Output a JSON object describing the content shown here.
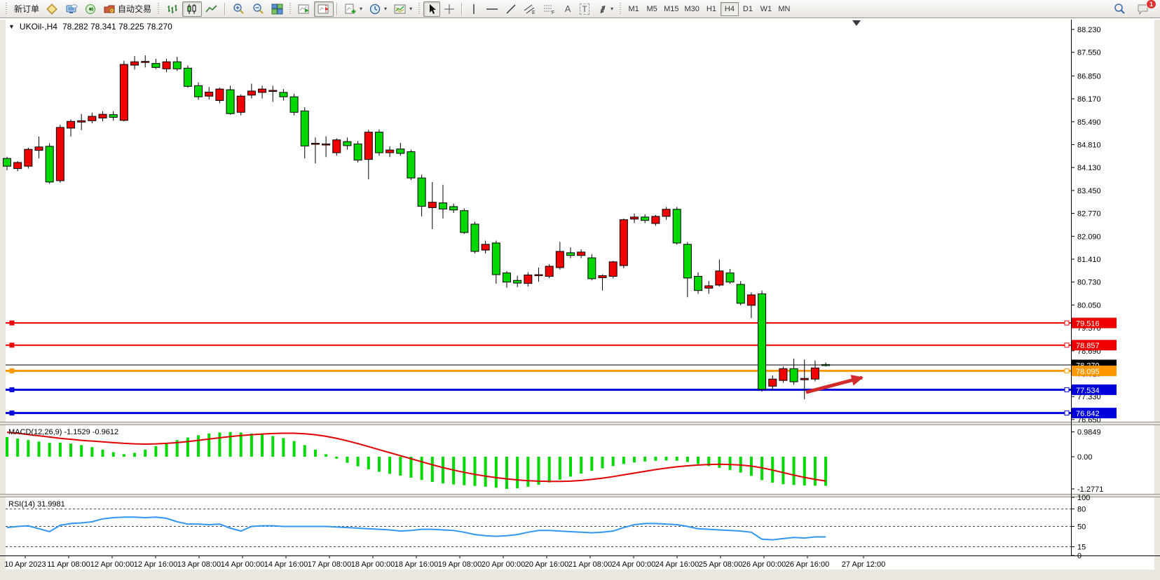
{
  "toolbar": {
    "new_order_label": "新订单",
    "autotrading_label": "自动交易",
    "icon_glyphs": {
      "text_tool": "A",
      "label_tool": "T",
      "channel_tool": "E",
      "fibo_tool": "F"
    },
    "timeframes": [
      "M1",
      "M5",
      "M15",
      "M30",
      "H1",
      "H4",
      "D1",
      "W1",
      "MN"
    ],
    "active_timeframe": "H4",
    "chat_badge": "1"
  },
  "chart": {
    "collapse_glyph": "▼",
    "symbol_period": "UKOil-,H4",
    "ohlc_text": "78.282 78.341 78.225 78.270",
    "up_color": "#f00000",
    "down_color": "#00d800"
  },
  "chart_data": [
    {
      "type": "candlestick",
      "title": "UKOil- H4",
      "x_labels": [
        "10 Apr 2023",
        "11 Apr 08:00",
        "12 Apr 00:00",
        "12 Apr 16:00",
        "13 Apr 08:00",
        "14 Apr 00:00",
        "14 Apr 16:00",
        "17 Apr 08:00",
        "18 Apr 00:00",
        "18 Apr 16:00",
        "19 Apr 08:00",
        "20 Apr 00:00",
        "20 Apr 16:00",
        "21 Apr 08:00",
        "24 Apr 00:00",
        "24 Apr 16:00",
        "25 Apr 08:00",
        "26 Apr 00:00",
        "26 Apr 16:00",
        "27 Apr 12:00"
      ],
      "y_ticks": [
        "88.230",
        "87.550",
        "86.850",
        "86.170",
        "85.490",
        "84.810",
        "84.130",
        "83.450",
        "82.770",
        "82.090",
        "81.410",
        "80.730",
        "80.050",
        "79.370",
        "78.690",
        "78.010",
        "77.330",
        "76.650"
      ],
      "ylim": [
        76.3,
        88.5
      ],
      "up_color": "#f00000",
      "down_color": "#00d800",
      "candles": [
        [
          84.4,
          84.45,
          84.05,
          84.17
        ],
        [
          84.1,
          84.32,
          84.02,
          84.28
        ],
        [
          84.17,
          84.72,
          84.1,
          84.67
        ],
        [
          84.64,
          85.05,
          84.4,
          84.74
        ],
        [
          84.76,
          84.85,
          83.65,
          83.7
        ],
        [
          83.74,
          85.4,
          83.68,
          85.32
        ],
        [
          85.3,
          85.56,
          85.05,
          85.5
        ],
        [
          85.48,
          85.72,
          85.24,
          85.52
        ],
        [
          85.52,
          85.76,
          85.44,
          85.65
        ],
        [
          85.6,
          85.8,
          85.5,
          85.71
        ],
        [
          85.7,
          85.8,
          85.52,
          85.62
        ],
        [
          85.53,
          87.3,
          85.5,
          87.19
        ],
        [
          87.17,
          87.44,
          87.04,
          87.27
        ],
        [
          87.25,
          87.46,
          87.1,
          87.28
        ],
        [
          87.22,
          87.36,
          87.05,
          87.1
        ],
        [
          87.06,
          87.36,
          86.96,
          87.27
        ],
        [
          87.27,
          87.42,
          87.0,
          87.06
        ],
        [
          87.08,
          87.16,
          86.5,
          86.54
        ],
        [
          86.56,
          86.66,
          86.14,
          86.23
        ],
        [
          86.25,
          86.52,
          86.15,
          86.37
        ],
        [
          86.12,
          86.5,
          86.04,
          86.46
        ],
        [
          86.44,
          86.56,
          85.7,
          85.73
        ],
        [
          85.77,
          86.3,
          85.68,
          86.25
        ],
        [
          86.28,
          86.62,
          86.18,
          86.4
        ],
        [
          86.36,
          86.56,
          86.18,
          86.46
        ],
        [
          86.4,
          86.56,
          86.08,
          86.42
        ],
        [
          86.36,
          86.46,
          86.12,
          86.23
        ],
        [
          86.23,
          86.32,
          85.68,
          85.77
        ],
        [
          85.81,
          85.92,
          84.4,
          84.77
        ],
        [
          84.83,
          85.02,
          84.25,
          84.85
        ],
        [
          84.8,
          85.06,
          84.44,
          84.83
        ],
        [
          84.57,
          85.0,
          84.48,
          84.95
        ],
        [
          84.9,
          85.02,
          84.66,
          84.78
        ],
        [
          84.83,
          84.92,
          84.28,
          84.35
        ],
        [
          84.37,
          85.25,
          83.78,
          85.18
        ],
        [
          85.18,
          85.26,
          84.48,
          84.57
        ],
        [
          84.57,
          84.76,
          84.44,
          84.65
        ],
        [
          84.68,
          84.86,
          84.48,
          84.55
        ],
        [
          84.6,
          84.66,
          83.76,
          83.82
        ],
        [
          83.82,
          83.92,
          82.68,
          82.98
        ],
        [
          82.94,
          83.7,
          82.3,
          83.1
        ],
        [
          83.08,
          83.62,
          82.62,
          82.9
        ],
        [
          82.97,
          83.06,
          82.78,
          82.87
        ],
        [
          82.85,
          82.92,
          82.16,
          82.2
        ],
        [
          82.45,
          82.52,
          81.58,
          81.64
        ],
        [
          81.68,
          81.96,
          81.58,
          81.85
        ],
        [
          81.89,
          81.96,
          80.68,
          80.95
        ],
        [
          81.0,
          81.06,
          80.56,
          80.73
        ],
        [
          80.78,
          80.92,
          80.58,
          80.7
        ],
        [
          80.69,
          81.02,
          80.6,
          80.94
        ],
        [
          80.95,
          81.16,
          80.74,
          80.95
        ],
        [
          80.9,
          81.26,
          80.84,
          81.2
        ],
        [
          81.16,
          81.92,
          81.1,
          81.64
        ],
        [
          81.6,
          81.76,
          81.44,
          81.52
        ],
        [
          81.52,
          81.7,
          81.44,
          81.62
        ],
        [
          81.45,
          81.56,
          80.78,
          80.83
        ],
        [
          80.86,
          80.96,
          80.48,
          80.92
        ],
        [
          80.9,
          81.36,
          80.84,
          81.33
        ],
        [
          81.22,
          82.62,
          81.14,
          82.58
        ],
        [
          82.6,
          82.76,
          82.48,
          82.66
        ],
        [
          82.66,
          82.74,
          82.48,
          82.56
        ],
        [
          82.47,
          82.72,
          82.4,
          82.68
        ],
        [
          82.68,
          82.96,
          82.58,
          82.89
        ],
        [
          82.89,
          82.96,
          81.84,
          81.89
        ],
        [
          81.85,
          81.92,
          80.28,
          80.85
        ],
        [
          80.9,
          81.02,
          80.38,
          80.48
        ],
        [
          80.55,
          80.76,
          80.38,
          80.62
        ],
        [
          80.64,
          81.4,
          80.6,
          81.06
        ],
        [
          81.0,
          81.12,
          80.68,
          80.73
        ],
        [
          80.66,
          80.76,
          80.04,
          80.1
        ],
        [
          80.04,
          80.42,
          79.66,
          80.35
        ],
        [
          80.38,
          80.48,
          77.48,
          77.55
        ],
        [
          77.64,
          77.96,
          77.52,
          77.85
        ],
        [
          77.81,
          78.22,
          77.74,
          78.16
        ],
        [
          78.16,
          78.46,
          77.68,
          77.77
        ],
        [
          77.83,
          78.43,
          77.25,
          77.87
        ],
        [
          77.85,
          78.4,
          77.78,
          78.18
        ],
        [
          78.282,
          78.341,
          78.225,
          78.27
        ]
      ],
      "hlines": [
        {
          "price": 79.516,
          "label": "79.516",
          "color": "#f00000",
          "width": 2,
          "name": "resistance-line-1"
        },
        {
          "price": 78.857,
          "label": "78.857",
          "color": "#f00000",
          "width": 2,
          "name": "resistance-line-2"
        },
        {
          "price": 78.27,
          "label": "78.270",
          "color": "#000000",
          "width": 1,
          "name": "current-price-line"
        },
        {
          "price": 78.095,
          "label": "78.095",
          "color": "#ff9800",
          "width": 3,
          "name": "orange-level-line"
        },
        {
          "price": 77.534,
          "label": "77.534",
          "color": "#0000dd",
          "width": 3,
          "name": "support-line-1"
        },
        {
          "price": 76.842,
          "label": "76.842",
          "color": "#0000dd",
          "width": 3,
          "name": "support-line-2"
        }
      ],
      "annotations": [
        {
          "type": "arrow",
          "from_xy": [
            1150,
            560
          ],
          "to_xy": [
            1230,
            539
          ],
          "color": "#d22a2a"
        }
      ]
    },
    {
      "type": "bar",
      "name": "MACD(12,26,9)",
      "values_text": "-1.1529 -0.9612",
      "axis_labels": [
        "0.9849",
        "0.00",
        "-1.2771"
      ],
      "ylim": [
        -1.2771,
        0.9849
      ],
      "histogram_color": "#00d800",
      "signal_color": "#e00000",
      "histogram": [
        0.78,
        0.72,
        0.66,
        0.6,
        0.55,
        0.56,
        0.52,
        0.46,
        0.38,
        0.28,
        0.18,
        0.1,
        0.15,
        0.28,
        0.42,
        0.55,
        0.66,
        0.76,
        0.85,
        0.92,
        0.96,
        0.98,
        0.96,
        0.92,
        0.88,
        0.82,
        0.74,
        0.62,
        0.46,
        0.28,
        0.1,
        -0.08,
        -0.24,
        -0.38,
        -0.5,
        -0.6,
        -0.68,
        -0.75,
        -0.83,
        -0.92,
        -1.0,
        -1.06,
        -1.1,
        -1.13,
        -1.16,
        -1.19,
        -1.23,
        -1.2771,
        -1.25,
        -1.19,
        -1.11,
        -1.02,
        -0.91,
        -0.79,
        -0.67,
        -0.56,
        -0.46,
        -0.37,
        -0.29,
        -0.23,
        -0.19,
        -0.16,
        -0.15,
        -0.16,
        -0.21,
        -0.29,
        -0.37,
        -0.44,
        -0.53,
        -0.63,
        -0.76,
        -0.93,
        -1.03,
        -1.09,
        -1.12,
        -1.14,
        -1.15,
        -1.1529
      ],
      "signal": [
        0.97,
        0.93,
        0.88,
        0.83,
        0.78,
        0.73,
        0.69,
        0.65,
        0.62,
        0.59,
        0.56,
        0.53,
        0.51,
        0.5,
        0.51,
        0.53,
        0.56,
        0.6,
        0.65,
        0.7,
        0.75,
        0.8,
        0.84,
        0.87,
        0.9,
        0.92,
        0.93,
        0.93,
        0.91,
        0.87,
        0.81,
        0.73,
        0.63,
        0.52,
        0.4,
        0.28,
        0.16,
        0.04,
        -0.08,
        -0.2,
        -0.32,
        -0.43,
        -0.53,
        -0.62,
        -0.7,
        -0.77,
        -0.83,
        -0.88,
        -0.92,
        -0.95,
        -0.97,
        -0.98,
        -0.98,
        -0.97,
        -0.94,
        -0.9,
        -0.85,
        -0.79,
        -0.72,
        -0.65,
        -0.58,
        -0.51,
        -0.45,
        -0.4,
        -0.36,
        -0.33,
        -0.31,
        -0.3,
        -0.31,
        -0.33,
        -0.37,
        -0.44,
        -0.53,
        -0.63,
        -0.73,
        -0.82,
        -0.9,
        -0.9612
      ]
    },
    {
      "type": "line",
      "name": "RSI(14)",
      "value_text": "31.9981",
      "axis_labels": [
        "100",
        "80",
        "50",
        "15",
        "0"
      ],
      "levels": [
        80,
        50,
        15
      ],
      "ylim": [
        0,
        100
      ],
      "color": "#2f96f3",
      "values": [
        48,
        50,
        51,
        46,
        41,
        52,
        55,
        56,
        58,
        63,
        65,
        66,
        66,
        65,
        66,
        64,
        58,
        54,
        54,
        53,
        54,
        47,
        42,
        50,
        51,
        51,
        50,
        50,
        50,
        50,
        50,
        49,
        48,
        47,
        46,
        45,
        44,
        42,
        43,
        45,
        45,
        44,
        43,
        40,
        36,
        34,
        33,
        34,
        36,
        40,
        43,
        43,
        42,
        41,
        40,
        39,
        40,
        42,
        48,
        53,
        55,
        55,
        54,
        53,
        50,
        46,
        45,
        44,
        43,
        42,
        40,
        28,
        27,
        29,
        31,
        30,
        32,
        31.9981
      ]
    }
  ]
}
